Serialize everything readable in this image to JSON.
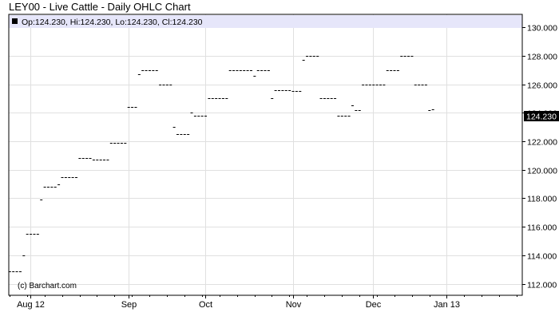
{
  "title": "LEY00 - Live Cattle - Daily OHLC Chart",
  "legend": {
    "text": "Op:124.230, Hi:124.230, Lo:124.230, Cl:124.230",
    "background": "#e6e6fa",
    "marker_color": "#000000"
  },
  "credit": "(c) Barchart.com",
  "last_price_label": "124.230",
  "colors": {
    "grid": "#e0e0e0",
    "bar": "#000000",
    "frame": "#000000",
    "last_label_bg": "#000000"
  },
  "chart_data": {
    "type": "ohlc",
    "title": "LEY00 - Live Cattle - Daily OHLC Chart",
    "xlabel": "",
    "ylabel": "",
    "grid": true,
    "legend_position": "top-left",
    "ylim": [
      111.2,
      130.9
    ],
    "y_ticks": [
      "112.000",
      "114.000",
      "116.000",
      "118.000",
      "120.000",
      "122.000",
      "124.000",
      "126.000",
      "128.000",
      "130.000"
    ],
    "y_tick_values": [
      112,
      114,
      116,
      118,
      120,
      122,
      124,
      126,
      128,
      130
    ],
    "x_labels": [
      {
        "label": "Aug 12",
        "index": 6
      },
      {
        "label": "Sep",
        "index": 34
      },
      {
        "label": "Oct",
        "index": 56
      },
      {
        "label": "Nov",
        "index": 81
      },
      {
        "label": "Dec",
        "index": 104
      },
      {
        "label": "Jan 13",
        "index": 125
      }
    ],
    "x_range": [
      0,
      145
    ],
    "last_value": 124.23,
    "series": [
      {
        "values": [
          112.9,
          112.9,
          112.9,
          112.9,
          114.0,
          115.5,
          115.5,
          115.5,
          115.5,
          117.9,
          118.8,
          118.8,
          118.8,
          118.8,
          119.0,
          119.5,
          119.5,
          119.5,
          119.5,
          119.5,
          120.8,
          120.8,
          120.8,
          120.8,
          120.7,
          120.7,
          120.7,
          120.7,
          120.7,
          121.9,
          121.9,
          121.9,
          121.9,
          121.9,
          124.4,
          124.4,
          124.4,
          126.7,
          127.0,
          127.0,
          127.0,
          127.0,
          127.0,
          126.0,
          126.0,
          126.0,
          126.0,
          123.0,
          122.5,
          122.5,
          122.5,
          122.5,
          124.0,
          123.8,
          123.8,
          123.8,
          123.8,
          125.0,
          125.0,
          125.0,
          125.0,
          125.0,
          125.0,
          127.0,
          127.0,
          127.0,
          127.0,
          127.0,
          127.0,
          127.0,
          126.6,
          127.0,
          127.0,
          127.0,
          127.0,
          125.0,
          125.6,
          125.6,
          125.6,
          125.6,
          125.6,
          125.5,
          125.5,
          125.5,
          127.7,
          128.0,
          128.0,
          128.0,
          128.0,
          125.0,
          125.0,
          125.0,
          125.0,
          125.0,
          123.8,
          123.8,
          123.8,
          123.8,
          124.5,
          124.2,
          124.2,
          126.0,
          126.0,
          126.0,
          126.0,
          126.0,
          126.0,
          126.0,
          127.0,
          127.0,
          127.0,
          127.0,
          128.0,
          128.0,
          128.0,
          128.0,
          126.0,
          126.0,
          126.0,
          126.0,
          124.2,
          124.23
        ]
      }
    ]
  }
}
